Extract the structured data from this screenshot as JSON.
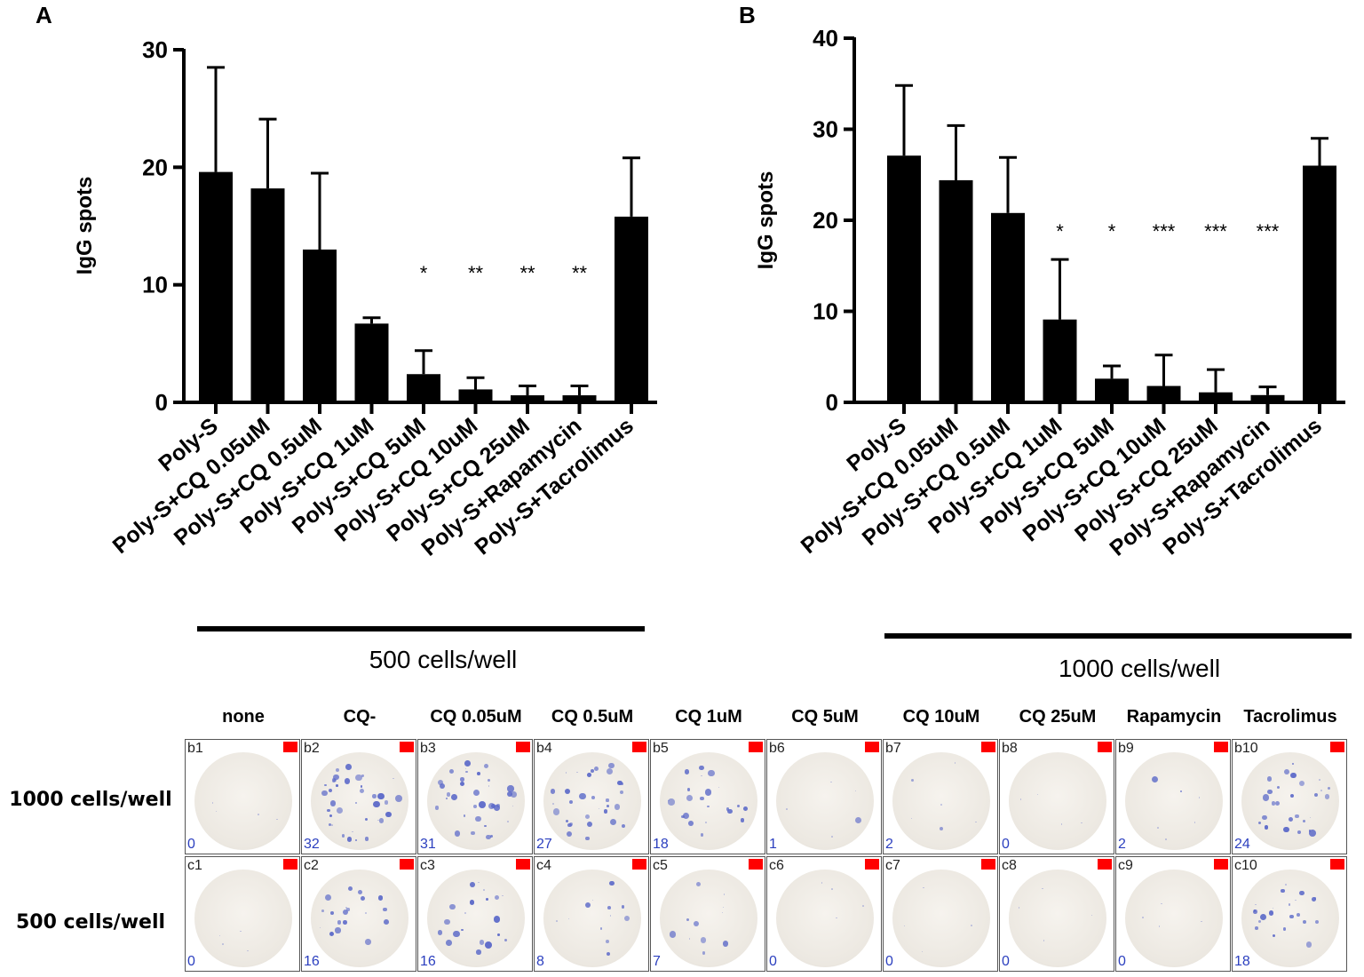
{
  "panel_labels": [
    "A",
    "B"
  ],
  "chart_data": [
    {
      "type": "bar",
      "panel": "A",
      "ylabel": "IgG spots",
      "ylim": [
        0,
        30
      ],
      "yticks": [
        0,
        10,
        20,
        30
      ],
      "categories": [
        "Poly-S",
        "Poly-S+CQ 0.05uM",
        "Poly-S+CQ 0.5uM",
        "Poly-S+CQ 1uM",
        "Poly-S+CQ 5uM",
        "Poly-S+CQ 10uM",
        "Poly-S+CQ 25uM",
        "Poly-S+Rapamycin",
        "Poly-S+Tacrolimus"
      ],
      "values": [
        19.6,
        18.2,
        13.0,
        6.7,
        2.4,
        1.1,
        0.6,
        0.6,
        15.8
      ],
      "error": [
        8.9,
        5.9,
        6.5,
        0.5,
        2.0,
        1.0,
        0.8,
        0.8,
        5.0
      ],
      "significance": [
        "",
        "",
        "",
        "",
        "*",
        "**",
        "**",
        "**",
        ""
      ],
      "group_label": "500 cells/well"
    },
    {
      "type": "bar",
      "panel": "B",
      "ylabel": "IgG spots",
      "ylim": [
        0,
        40
      ],
      "yticks": [
        0,
        10,
        20,
        30,
        40
      ],
      "categories": [
        "Poly-S",
        "Poly-S+CQ 0.05uM",
        "Poly-S+CQ 0.5uM",
        "Poly-S+CQ 1uM",
        "Poly-S+CQ 5uM",
        "Poly-S+CQ 10uM",
        "Poly-S+CQ 25uM",
        "Poly-S+Rapamycin",
        "Poly-S+Tacrolimus"
      ],
      "values": [
        27.1,
        24.4,
        20.8,
        9.1,
        2.6,
        1.8,
        1.1,
        0.8,
        26.0
      ],
      "error": [
        7.7,
        6.0,
        6.1,
        6.6,
        1.4,
        3.4,
        2.5,
        0.9,
        3.0
      ],
      "significance": [
        "",
        "",
        "",
        "*",
        "*",
        "***",
        "***",
        "***",
        ""
      ],
      "group_label": "1000 cells/well"
    }
  ],
  "wells": {
    "columns": [
      "none",
      "CQ-",
      "CQ 0.05uM",
      "CQ 0.5uM",
      "CQ 1uM",
      "CQ 5uM",
      "CQ 10uM",
      "CQ 25uM",
      "Rapamycin",
      "Tacrolimus"
    ],
    "rows": [
      {
        "label": "1000 cells/well",
        "ids": [
          "b1",
          "b2",
          "b3",
          "b4",
          "b5",
          "b6",
          "b7",
          "b8",
          "b9",
          "b10"
        ],
        "counts": [
          "0",
          "32",
          "31",
          "27",
          "18",
          "1",
          "2",
          "0",
          "2",
          "24"
        ]
      },
      {
        "label": "500 cells/well",
        "ids": [
          "c1",
          "c2",
          "c3",
          "c4",
          "c5",
          "c6",
          "c7",
          "c8",
          "c9",
          "c10"
        ],
        "counts": [
          "0",
          "16",
          "16",
          "8",
          "7",
          "0",
          "0",
          "0",
          "0",
          "18"
        ]
      }
    ],
    "spot_color": "#5a68c8",
    "flag_color": "#ff0000"
  }
}
